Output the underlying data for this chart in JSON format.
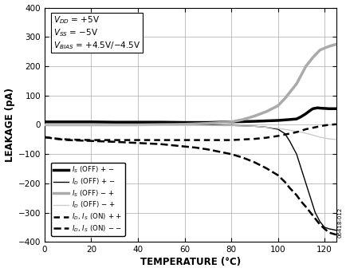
{
  "title": "",
  "xlabel": "TEMPERATURE (°C)",
  "ylabel": "LEAKAGE (pA)",
  "xlim": [
    0,
    125
  ],
  "ylim": [
    -400,
    400
  ],
  "xticks": [
    0,
    20,
    40,
    60,
    80,
    100,
    120
  ],
  "yticks": [
    -400,
    -300,
    -200,
    -100,
    0,
    100,
    200,
    300,
    400
  ],
  "watermark": "06418-012",
  "background_color": "#ffffff",
  "grid_color": "#aaaaaa",
  "series": [
    {
      "name": "IS_OFF_pm",
      "color": "#000000",
      "linewidth": 2.5,
      "linestyle": "solid",
      "x": [
        0,
        5,
        10,
        20,
        30,
        40,
        50,
        60,
        70,
        80,
        90,
        100,
        105,
        108,
        110,
        112,
        114,
        115,
        117,
        118,
        120,
        122,
        125
      ],
      "y": [
        10,
        10,
        10,
        10,
        9,
        9,
        9,
        8,
        8,
        10,
        12,
        15,
        18,
        20,
        28,
        38,
        50,
        55,
        58,
        57,
        56,
        55,
        55
      ]
    },
    {
      "name": "ID_OFF_pm",
      "color": "#000000",
      "linewidth": 1.0,
      "linestyle": "solid",
      "x": [
        0,
        10,
        20,
        40,
        60,
        80,
        90,
        95,
        100,
        103,
        105,
        108,
        110,
        112,
        114,
        116,
        118,
        120,
        122,
        125
      ],
      "y": [
        2,
        2,
        2,
        1,
        0,
        -2,
        -5,
        -8,
        -15,
        -30,
        -55,
        -100,
        -150,
        -200,
        -250,
        -300,
        -330,
        -350,
        -355,
        -360
      ]
    },
    {
      "name": "IS_OFF_mp",
      "color": "#aaaaaa",
      "linewidth": 2.5,
      "linestyle": "solid",
      "x": [
        0,
        10,
        20,
        40,
        60,
        70,
        80,
        85,
        90,
        95,
        100,
        103,
        105,
        108,
        110,
        112,
        115,
        118,
        120,
        122,
        125
      ],
      "y": [
        0,
        0,
        0,
        0,
        2,
        5,
        10,
        18,
        30,
        45,
        65,
        90,
        110,
        140,
        170,
        200,
        230,
        255,
        262,
        268,
        275
      ]
    },
    {
      "name": "ID_OFF_mp",
      "color": "#cccccc",
      "linewidth": 1.0,
      "linestyle": "solid",
      "x": [
        0,
        10,
        20,
        40,
        60,
        80,
        90,
        95,
        100,
        105,
        110,
        115,
        118,
        120,
        122,
        125
      ],
      "y": [
        0,
        0,
        0,
        -1,
        -2,
        -3,
        -5,
        -8,
        -12,
        -18,
        -25,
        -35,
        -42,
        -45,
        -48,
        -50
      ]
    },
    {
      "name": "ID_IS_ON_pp",
      "color": "#000000",
      "linewidth": 1.8,
      "linestyle": "dotted",
      "x": [
        0,
        5,
        10,
        20,
        30,
        40,
        50,
        60,
        70,
        75,
        80,
        85,
        90,
        95,
        100,
        105,
        108,
        110,
        112,
        115,
        118,
        120,
        122,
        125
      ],
      "y": [
        -42,
        -47,
        -50,
        -52,
        -52,
        -52,
        -52,
        -52,
        -52,
        -52,
        -52,
        -50,
        -48,
        -44,
        -38,
        -30,
        -25,
        -20,
        -15,
        -10,
        -5,
        -2,
        0,
        2
      ]
    },
    {
      "name": "ID_IS_ON_mm",
      "color": "#000000",
      "linewidth": 1.8,
      "linestyle": "dashed",
      "x": [
        0,
        5,
        10,
        20,
        30,
        40,
        50,
        55,
        60,
        65,
        70,
        75,
        80,
        85,
        90,
        95,
        100,
        103,
        105,
        108,
        110,
        112,
        115,
        117,
        118,
        120,
        122,
        125
      ],
      "y": [
        -42,
        -48,
        -52,
        -55,
        -58,
        -62,
        -66,
        -70,
        -74,
        -78,
        -84,
        -92,
        -100,
        -112,
        -128,
        -148,
        -172,
        -195,
        -215,
        -240,
        -262,
        -280,
        -310,
        -330,
        -340,
        -355,
        -368,
        -375
      ]
    }
  ]
}
